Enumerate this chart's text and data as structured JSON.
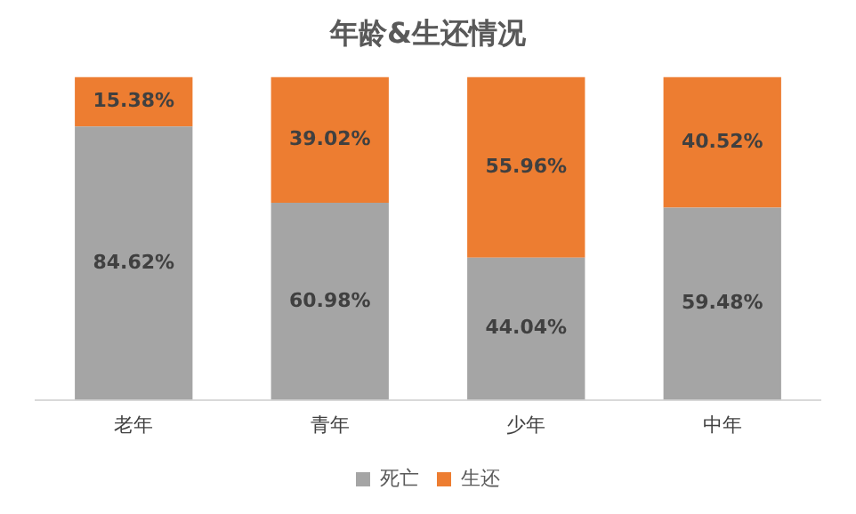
{
  "chart_data": {
    "type": "bar",
    "title": "年龄&生还情况",
    "stacked": true,
    "categories": [
      "老年",
      "青年",
      "少年",
      "中年"
    ],
    "series": [
      {
        "name": "死亡",
        "color": "#a5a5a5",
        "values": [
          84.62,
          60.98,
          44.04,
          59.48
        ],
        "value_labels": [
          "84.62%",
          "60.98%",
          "44.04%",
          "59.48%"
        ]
      },
      {
        "name": "生还",
        "color": "#ed7d31",
        "values": [
          15.38,
          39.02,
          55.96,
          40.52
        ],
        "value_labels": [
          "15.38%",
          "39.02%",
          "55.96%",
          "40.52%"
        ]
      }
    ],
    "legend": "bottom",
    "grid": false
  }
}
